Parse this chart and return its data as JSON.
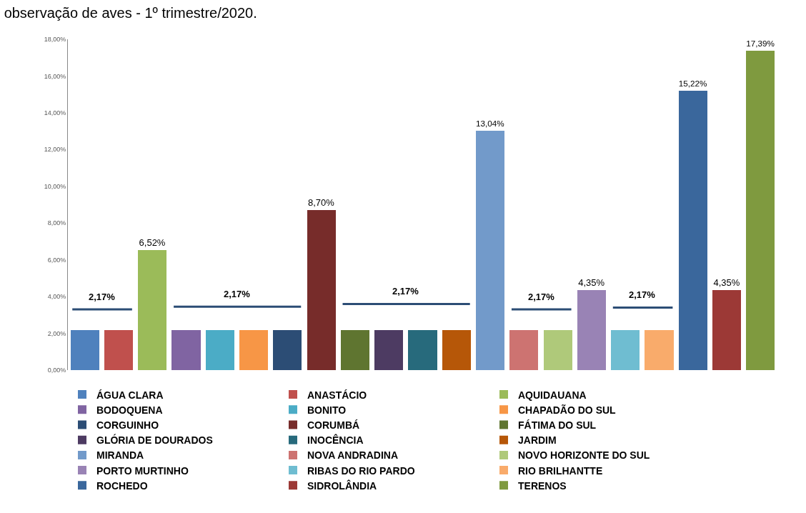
{
  "chart_data": {
    "type": "bar",
    "title": "observação de aves - 1º trimestre/2020.",
    "categories": [
      null,
      null,
      null,
      null,
      null,
      null,
      null,
      null,
      null,
      null,
      null,
      null,
      null,
      null,
      null,
      null,
      null,
      null,
      null,
      null,
      null
    ],
    "series": [
      {
        "name": "ÁGUA CLARA",
        "color": "#4f81bd",
        "values": [
          2.17,
          null,
          null,
          null,
          null,
          null,
          null,
          null,
          null,
          null,
          null,
          null,
          null,
          null,
          null,
          null,
          null,
          null,
          null,
          null,
          null
        ]
      },
      {
        "name": "ANASTÁCIO",
        "color": "#c0504d",
        "values": [
          null,
          2.17,
          null,
          null,
          null,
          null,
          null,
          null,
          null,
          null,
          null,
          null,
          null,
          null,
          null,
          null,
          null,
          null,
          null,
          null,
          null
        ]
      },
      {
        "name": "AQUIDAUANA",
        "color": "#9bbb59",
        "values": [
          null,
          null,
          6.52,
          null,
          null,
          null,
          null,
          null,
          null,
          null,
          null,
          null,
          null,
          null,
          null,
          null,
          null,
          null,
          null,
          null,
          null
        ],
        "value_labels": [
          null,
          null,
          "6,52%",
          null,
          null,
          null,
          null,
          null,
          null,
          null,
          null,
          null,
          null,
          null,
          null,
          null,
          null,
          null,
          null,
          null,
          null
        ]
      },
      {
        "name": "BODOQUENA",
        "color": "#8064a2",
        "values": [
          null,
          null,
          null,
          2.17,
          null,
          null,
          null,
          null,
          null,
          null,
          null,
          null,
          null,
          null,
          null,
          null,
          null,
          null,
          null,
          null,
          null
        ]
      },
      {
        "name": "BONITO",
        "color": "#4bacc6",
        "values": [
          null,
          null,
          null,
          null,
          2.17,
          null,
          null,
          null,
          null,
          null,
          null,
          null,
          null,
          null,
          null,
          null,
          null,
          null,
          null,
          null,
          null
        ]
      },
      {
        "name": "CHAPADÃO DO SUL",
        "color": "#f79646",
        "values": [
          null,
          null,
          null,
          null,
          null,
          2.17,
          null,
          null,
          null,
          null,
          null,
          null,
          null,
          null,
          null,
          null,
          null,
          null,
          null,
          null,
          null
        ]
      },
      {
        "name": "CORGUINHO",
        "color": "#2c4d75",
        "values": [
          null,
          null,
          null,
          null,
          null,
          null,
          2.17,
          null,
          null,
          null,
          null,
          null,
          null,
          null,
          null,
          null,
          null,
          null,
          null,
          null,
          null
        ]
      },
      {
        "name": "CORUMBÁ",
        "color": "#772c2a",
        "values": [
          null,
          null,
          null,
          null,
          null,
          null,
          null,
          8.7,
          null,
          null,
          null,
          null,
          null,
          null,
          null,
          null,
          null,
          null,
          null,
          null,
          null
        ],
        "value_labels": [
          null,
          null,
          null,
          null,
          null,
          null,
          null,
          "8,70%",
          null,
          null,
          null,
          null,
          null,
          null,
          null,
          null,
          null,
          null,
          null,
          null,
          null
        ]
      },
      {
        "name": "FÁTIMA DO SUL",
        "color": "#5f7530",
        "values": [
          null,
          null,
          null,
          null,
          null,
          null,
          null,
          null,
          2.17,
          null,
          null,
          null,
          null,
          null,
          null,
          null,
          null,
          null,
          null,
          null,
          null
        ]
      },
      {
        "name": "GLÓRIA DE DOURADOS",
        "color": "#4d3b62",
        "values": [
          null,
          null,
          null,
          null,
          null,
          null,
          null,
          null,
          null,
          2.17,
          null,
          null,
          null,
          null,
          null,
          null,
          null,
          null,
          null,
          null,
          null
        ]
      },
      {
        "name": "INOCÊNCIA",
        "color": "#276a7c",
        "values": [
          null,
          null,
          null,
          null,
          null,
          null,
          null,
          null,
          null,
          null,
          2.17,
          null,
          null,
          null,
          null,
          null,
          null,
          null,
          null,
          null,
          null
        ]
      },
      {
        "name": "JARDIM",
        "color": "#b65708",
        "values": [
          null,
          null,
          null,
          null,
          null,
          null,
          null,
          null,
          null,
          null,
          null,
          2.17,
          null,
          null,
          null,
          null,
          null,
          null,
          null,
          null,
          null
        ]
      },
      {
        "name": "MIRANDA",
        "color": "#729aca",
        "values": [
          null,
          null,
          null,
          null,
          null,
          null,
          null,
          null,
          null,
          null,
          null,
          null,
          13.04,
          null,
          null,
          null,
          null,
          null,
          null,
          null,
          null
        ],
        "value_labels": [
          null,
          null,
          null,
          null,
          null,
          null,
          null,
          null,
          null,
          null,
          null,
          null,
          "13,04%",
          null,
          null,
          null,
          null,
          null,
          null,
          null,
          null
        ]
      },
      {
        "name": "NOVA ANDRADINA",
        "color": "#cd7371",
        "values": [
          null,
          null,
          null,
          null,
          null,
          null,
          null,
          null,
          null,
          null,
          null,
          null,
          null,
          2.17,
          null,
          null,
          null,
          null,
          null,
          null,
          null
        ]
      },
      {
        "name": "NOVO HORIZONTE DO SUL",
        "color": "#afc97a",
        "values": [
          null,
          null,
          null,
          null,
          null,
          null,
          null,
          null,
          null,
          null,
          null,
          null,
          null,
          null,
          2.17,
          null,
          null,
          null,
          null,
          null,
          null
        ]
      },
      {
        "name": "PORTO MURTINHO",
        "color": "#9983b5",
        "values": [
          null,
          null,
          null,
          null,
          null,
          null,
          null,
          null,
          null,
          null,
          null,
          null,
          null,
          null,
          null,
          4.35,
          null,
          null,
          null,
          null,
          null
        ],
        "value_labels": [
          null,
          null,
          null,
          null,
          null,
          null,
          null,
          null,
          null,
          null,
          null,
          null,
          null,
          null,
          null,
          "4,35%",
          null,
          null,
          null,
          null,
          null
        ]
      },
      {
        "name": "RIBAS DO RIO PARDO",
        "color": "#6fbdd1",
        "values": [
          null,
          null,
          null,
          null,
          null,
          null,
          null,
          null,
          null,
          null,
          null,
          null,
          null,
          null,
          null,
          null,
          2.17,
          null,
          null,
          null,
          null
        ]
      },
      {
        "name": "RIO BRILHANTTE",
        "color": "#f9ab6b",
        "values": [
          null,
          null,
          null,
          null,
          null,
          null,
          null,
          null,
          null,
          null,
          null,
          null,
          null,
          null,
          null,
          null,
          null,
          2.17,
          null,
          null,
          null
        ]
      },
      {
        "name": "ROCHEDO",
        "color": "#3a679c",
        "values": [
          null,
          null,
          null,
          null,
          null,
          null,
          null,
          null,
          null,
          null,
          null,
          null,
          null,
          null,
          null,
          null,
          null,
          null,
          15.22,
          null,
          null
        ],
        "value_labels": [
          null,
          null,
          null,
          null,
          null,
          null,
          null,
          null,
          null,
          null,
          null,
          null,
          null,
          null,
          null,
          null,
          null,
          null,
          "15,22%",
          null,
          null
        ]
      },
      {
        "name": "SIDROLÂNDIA",
        "color": "#9c3936",
        "values": [
          null,
          null,
          null,
          null,
          null,
          null,
          null,
          null,
          null,
          null,
          null,
          null,
          null,
          null,
          null,
          null,
          null,
          null,
          null,
          4.35,
          null
        ],
        "value_labels": [
          null,
          null,
          null,
          null,
          null,
          null,
          null,
          null,
          null,
          null,
          null,
          null,
          null,
          null,
          null,
          null,
          null,
          null,
          null,
          "4,35%",
          null
        ]
      },
      {
        "name": "TERENOS",
        "color": "#7f9a3f",
        "values": [
          null,
          null,
          null,
          null,
          null,
          null,
          null,
          null,
          null,
          null,
          null,
          null,
          null,
          null,
          null,
          null,
          null,
          null,
          null,
          null,
          17.39
        ],
        "value_labels": [
          null,
          null,
          null,
          null,
          null,
          null,
          null,
          null,
          null,
          null,
          null,
          null,
          null,
          null,
          null,
          null,
          null,
          null,
          null,
          null,
          "17,39%"
        ]
      }
    ],
    "ylim": [
      0,
      18
    ],
    "yticks": [
      {
        "value": 0,
        "label": "0,00%"
      },
      {
        "value": 2,
        "label": "2,00%"
      },
      {
        "value": 4,
        "label": "4,00%"
      },
      {
        "value": 6,
        "label": "6,00%"
      },
      {
        "value": 8,
        "label": "8,00%"
      },
      {
        "value": 10,
        "label": "10,00%"
      },
      {
        "value": 12,
        "label": "12,00%"
      },
      {
        "value": 14,
        "label": "14,00%"
      },
      {
        "value": 16,
        "label": "16,00%"
      },
      {
        "value": 18,
        "label": "18,00%"
      }
    ],
    "annotations": [
      "2,17%",
      "2,17%",
      "2,17%",
      "2,17%",
      "2,17%"
    ],
    "stacked": true,
    "grid": false,
    "legend": "bottom",
    "tick_labels": "y"
  }
}
